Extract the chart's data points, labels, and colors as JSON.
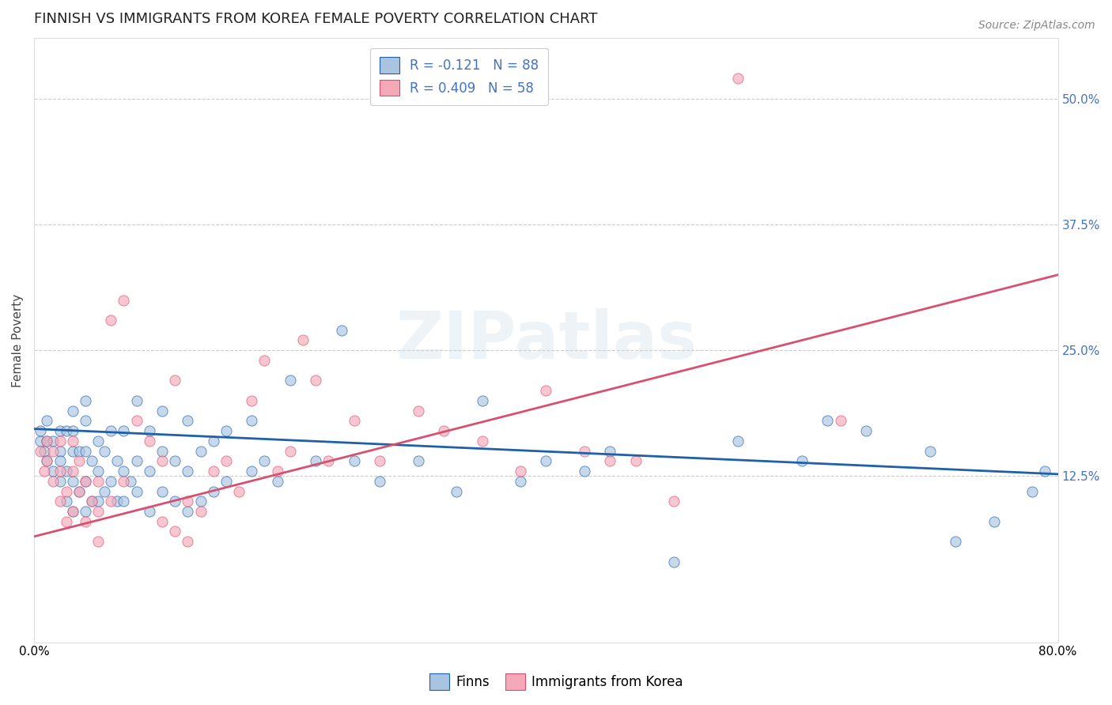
{
  "title": "FINNISH VS IMMIGRANTS FROM KOREA FEMALE POVERTY CORRELATION CHART",
  "source": "Source: ZipAtlas.com",
  "ylabel": "Female Poverty",
  "watermark": "ZIPatlas",
  "xlim": [
    0.0,
    0.8
  ],
  "ylim": [
    -0.04,
    0.56
  ],
  "yticks": [
    0.125,
    0.25,
    0.375,
    0.5
  ],
  "ytick_labels": [
    "12.5%",
    "25.0%",
    "37.5%",
    "50.0%"
  ],
  "xticks": [
    0.0,
    0.2,
    0.4,
    0.6,
    0.8
  ],
  "xtick_labels": [
    "0.0%",
    "",
    "",
    "",
    "80.0%"
  ],
  "legend_entry1": "R = -0.121   N = 88",
  "legend_entry2": "R = 0.409   N = 58",
  "legend_label1": "Finns",
  "legend_label2": "Immigrants from Korea",
  "color_finns": "#a8c4e0",
  "color_korea": "#f4a8b8",
  "color_line_finns": "#2060a8",
  "color_line_korea": "#d85070",
  "finns_x": [
    0.005,
    0.005,
    0.008,
    0.01,
    0.01,
    0.01,
    0.015,
    0.015,
    0.02,
    0.02,
    0.02,
    0.02,
    0.025,
    0.025,
    0.025,
    0.03,
    0.03,
    0.03,
    0.03,
    0.03,
    0.035,
    0.035,
    0.04,
    0.04,
    0.04,
    0.04,
    0.04,
    0.045,
    0.045,
    0.05,
    0.05,
    0.05,
    0.055,
    0.055,
    0.06,
    0.06,
    0.065,
    0.065,
    0.07,
    0.07,
    0.07,
    0.075,
    0.08,
    0.08,
    0.08,
    0.09,
    0.09,
    0.09,
    0.1,
    0.1,
    0.1,
    0.11,
    0.11,
    0.12,
    0.12,
    0.12,
    0.13,
    0.13,
    0.14,
    0.14,
    0.15,
    0.15,
    0.17,
    0.17,
    0.18,
    0.19,
    0.2,
    0.22,
    0.24,
    0.25,
    0.27,
    0.3,
    0.33,
    0.35,
    0.38,
    0.4,
    0.43,
    0.45,
    0.5,
    0.55,
    0.6,
    0.62,
    0.65,
    0.7,
    0.72,
    0.75,
    0.78,
    0.79
  ],
  "finns_y": [
    0.16,
    0.17,
    0.15,
    0.14,
    0.16,
    0.18,
    0.13,
    0.16,
    0.12,
    0.15,
    0.17,
    0.14,
    0.1,
    0.13,
    0.17,
    0.09,
    0.12,
    0.15,
    0.17,
    0.19,
    0.11,
    0.15,
    0.09,
    0.12,
    0.15,
    0.18,
    0.2,
    0.1,
    0.14,
    0.1,
    0.13,
    0.16,
    0.11,
    0.15,
    0.12,
    0.17,
    0.1,
    0.14,
    0.1,
    0.13,
    0.17,
    0.12,
    0.11,
    0.14,
    0.2,
    0.09,
    0.13,
    0.17,
    0.11,
    0.15,
    0.19,
    0.1,
    0.14,
    0.09,
    0.13,
    0.18,
    0.1,
    0.15,
    0.11,
    0.16,
    0.12,
    0.17,
    0.13,
    0.18,
    0.14,
    0.12,
    0.22,
    0.14,
    0.27,
    0.14,
    0.12,
    0.14,
    0.11,
    0.2,
    0.12,
    0.14,
    0.13,
    0.15,
    0.04,
    0.16,
    0.14,
    0.18,
    0.17,
    0.15,
    0.06,
    0.08,
    0.11,
    0.13
  ],
  "korea_x": [
    0.005,
    0.008,
    0.01,
    0.01,
    0.015,
    0.015,
    0.02,
    0.02,
    0.02,
    0.025,
    0.025,
    0.03,
    0.03,
    0.03,
    0.035,
    0.035,
    0.04,
    0.04,
    0.045,
    0.05,
    0.05,
    0.05,
    0.06,
    0.06,
    0.07,
    0.07,
    0.08,
    0.09,
    0.1,
    0.1,
    0.11,
    0.11,
    0.12,
    0.12,
    0.13,
    0.14,
    0.15,
    0.16,
    0.17,
    0.18,
    0.19,
    0.2,
    0.21,
    0.22,
    0.23,
    0.25,
    0.27,
    0.3,
    0.32,
    0.35,
    0.38,
    0.4,
    0.43,
    0.45,
    0.47,
    0.5,
    0.55,
    0.63
  ],
  "korea_y": [
    0.15,
    0.13,
    0.14,
    0.16,
    0.12,
    0.15,
    0.1,
    0.13,
    0.16,
    0.08,
    0.11,
    0.09,
    0.13,
    0.16,
    0.11,
    0.14,
    0.08,
    0.12,
    0.1,
    0.09,
    0.12,
    0.06,
    0.28,
    0.1,
    0.3,
    0.12,
    0.18,
    0.16,
    0.14,
    0.08,
    0.07,
    0.22,
    0.06,
    0.1,
    0.09,
    0.13,
    0.14,
    0.11,
    0.2,
    0.24,
    0.13,
    0.15,
    0.26,
    0.22,
    0.14,
    0.18,
    0.14,
    0.19,
    0.17,
    0.16,
    0.13,
    0.21,
    0.15,
    0.14,
    0.14,
    0.1,
    0.52,
    0.18
  ],
  "finns_line_x": [
    0.0,
    0.8
  ],
  "finns_line_y": [
    0.172,
    0.127
  ],
  "korea_line_x": [
    0.0,
    0.8
  ],
  "korea_line_y": [
    0.065,
    0.325
  ],
  "background_color": "#ffffff",
  "grid_color": "#cccccc",
  "title_fontsize": 13,
  "axis_label_fontsize": 11,
  "tick_fontsize": 11,
  "legend_fontsize": 12,
  "source_fontsize": 10,
  "marker_size": 90,
  "marker_alpha": 0.65,
  "watermark_color": "#c8d8e8",
  "watermark_fontsize": 60,
  "watermark_alpha": 0.3
}
